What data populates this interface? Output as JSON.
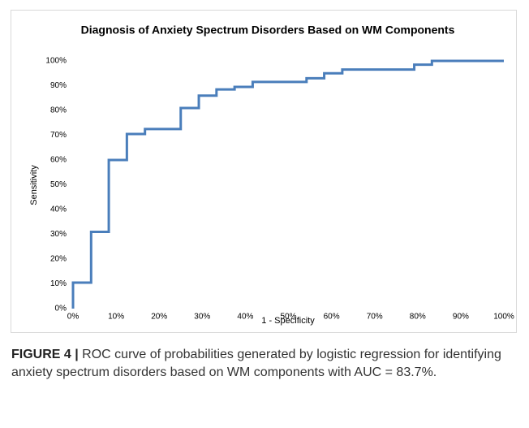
{
  "chart_data": {
    "type": "line",
    "title": "Diagnosis of Anxiety Spectrum Disorders Based on WM Components",
    "x_label": "1 - Specificity",
    "y_label": "Sensitivity",
    "x": [
      0,
      0,
      4.2,
      4.2,
      8.3,
      8.3,
      12.5,
      12.5,
      16.7,
      16.7,
      25,
      25,
      29.2,
      29.2,
      33.3,
      33.3,
      37.5,
      37.5,
      41.7,
      41.7,
      54.2,
      54.2,
      58.3,
      58.3,
      62.5,
      62.5,
      79.2,
      79.2,
      83.3,
      83.3,
      100
    ],
    "values": [
      0,
      10.5,
      10.5,
      31,
      31,
      60,
      60,
      70.5,
      70.5,
      72.5,
      72.5,
      81,
      81,
      86,
      86,
      88.5,
      88.5,
      89.5,
      89.5,
      91.5,
      91.5,
      93,
      93,
      95,
      95,
      96.5,
      96.5,
      98.5,
      98.5,
      100,
      100
    ],
    "color": "#4a7ebb",
    "xlim": [
      0,
      100
    ],
    "ylim": [
      0,
      100
    ],
    "xticks": [
      {
        "value": 0,
        "label": "0%"
      },
      {
        "value": 10,
        "label": "10%"
      },
      {
        "value": 20,
        "label": "20%"
      },
      {
        "value": 30,
        "label": "30%"
      },
      {
        "value": 40,
        "label": "40%"
      },
      {
        "value": 50,
        "label": "50%"
      },
      {
        "value": 60,
        "label": "60%"
      },
      {
        "value": 70,
        "label": "70%"
      },
      {
        "value": 80,
        "label": "80%"
      },
      {
        "value": 90,
        "label": "90%"
      },
      {
        "value": 100,
        "label": "100%"
      }
    ],
    "yticks": [
      {
        "value": 0,
        "label": "0%"
      },
      {
        "value": 10,
        "label": "10%"
      },
      {
        "value": 20,
        "label": "20%"
      },
      {
        "value": 30,
        "label": "30%"
      },
      {
        "value": 40,
        "label": "40%"
      },
      {
        "value": 50,
        "label": "50%"
      },
      {
        "value": 60,
        "label": "60%"
      },
      {
        "value": 70,
        "label": "70%"
      },
      {
        "value": 80,
        "label": "80%"
      },
      {
        "value": 90,
        "label": "90%"
      },
      {
        "value": 100,
        "label": "100%"
      }
    ],
    "grid": false
  },
  "caption": {
    "label": "FIGURE 4 |",
    "text": "ROC curve of probabilities generated by logistic regression for identifying anxiety spectrum disorders based on WM components with AUC = 83.7%."
  }
}
